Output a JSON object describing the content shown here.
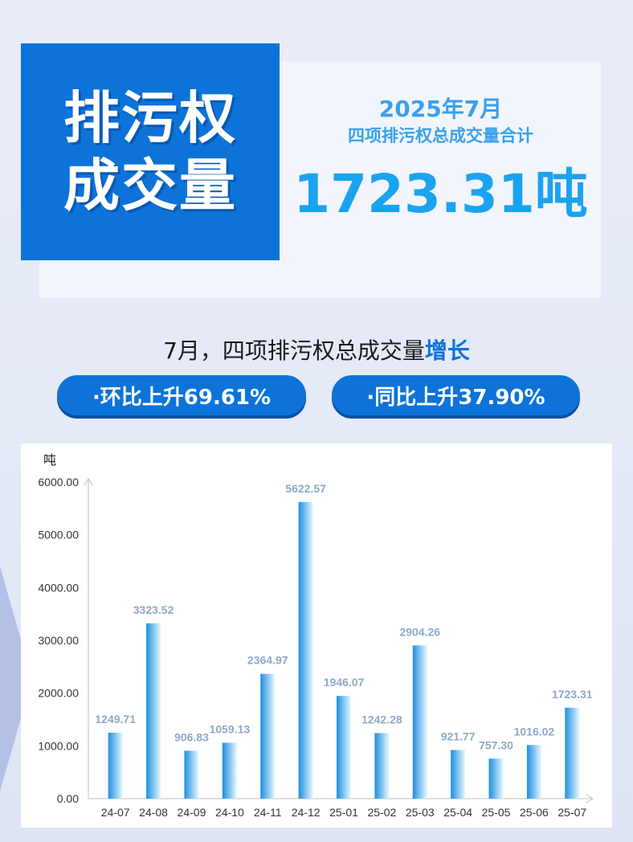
{
  "header": {
    "title_line1": "排污权",
    "title_line2": "成交量",
    "period": "2025年7月",
    "summary_label": "四项排污权总成交量合计",
    "total_value": "1723.31吨"
  },
  "growth": {
    "heading_prefix": "7月，四项排污权总成交量",
    "heading_highlight": "增长",
    "mom_text": "·环比上升69.61%",
    "yoy_text": "·同比上升37.90%"
  },
  "colors": {
    "brand_blue": "#0d73d9",
    "accent_blue": "#3aa0ea",
    "bar_dark": "#1e8fe0",
    "bar_light": "#e6f8ff",
    "label_color": "#8fa8c8"
  },
  "chart_data": {
    "type": "bar",
    "ylabel": "吨",
    "ylim": [
      0,
      6000
    ],
    "yticks": [
      "0.00",
      "1000.00",
      "2000.00",
      "3000.00",
      "4000.00",
      "5000.00",
      "6000.00"
    ],
    "categories": [
      "24-07",
      "24-08",
      "24-09",
      "24-10",
      "24-11",
      "24-12",
      "25-01",
      "25-02",
      "25-03",
      "25-04",
      "25-05",
      "25-06",
      "25-07"
    ],
    "values": [
      1249.71,
      3323.52,
      906.83,
      1059.13,
      2364.97,
      5622.57,
      1946.07,
      1242.28,
      2904.26,
      921.77,
      757.3,
      1016.02,
      1723.31
    ],
    "value_labels": [
      "1249.71",
      "3323.52",
      "906.83",
      "1059.13",
      "2364.97",
      "5622.57",
      "1946.07",
      "1242.28",
      "2904.26",
      "921.77",
      "757.30",
      "1016.02",
      "1723.31"
    ],
    "grid": false,
    "legend": "none"
  }
}
